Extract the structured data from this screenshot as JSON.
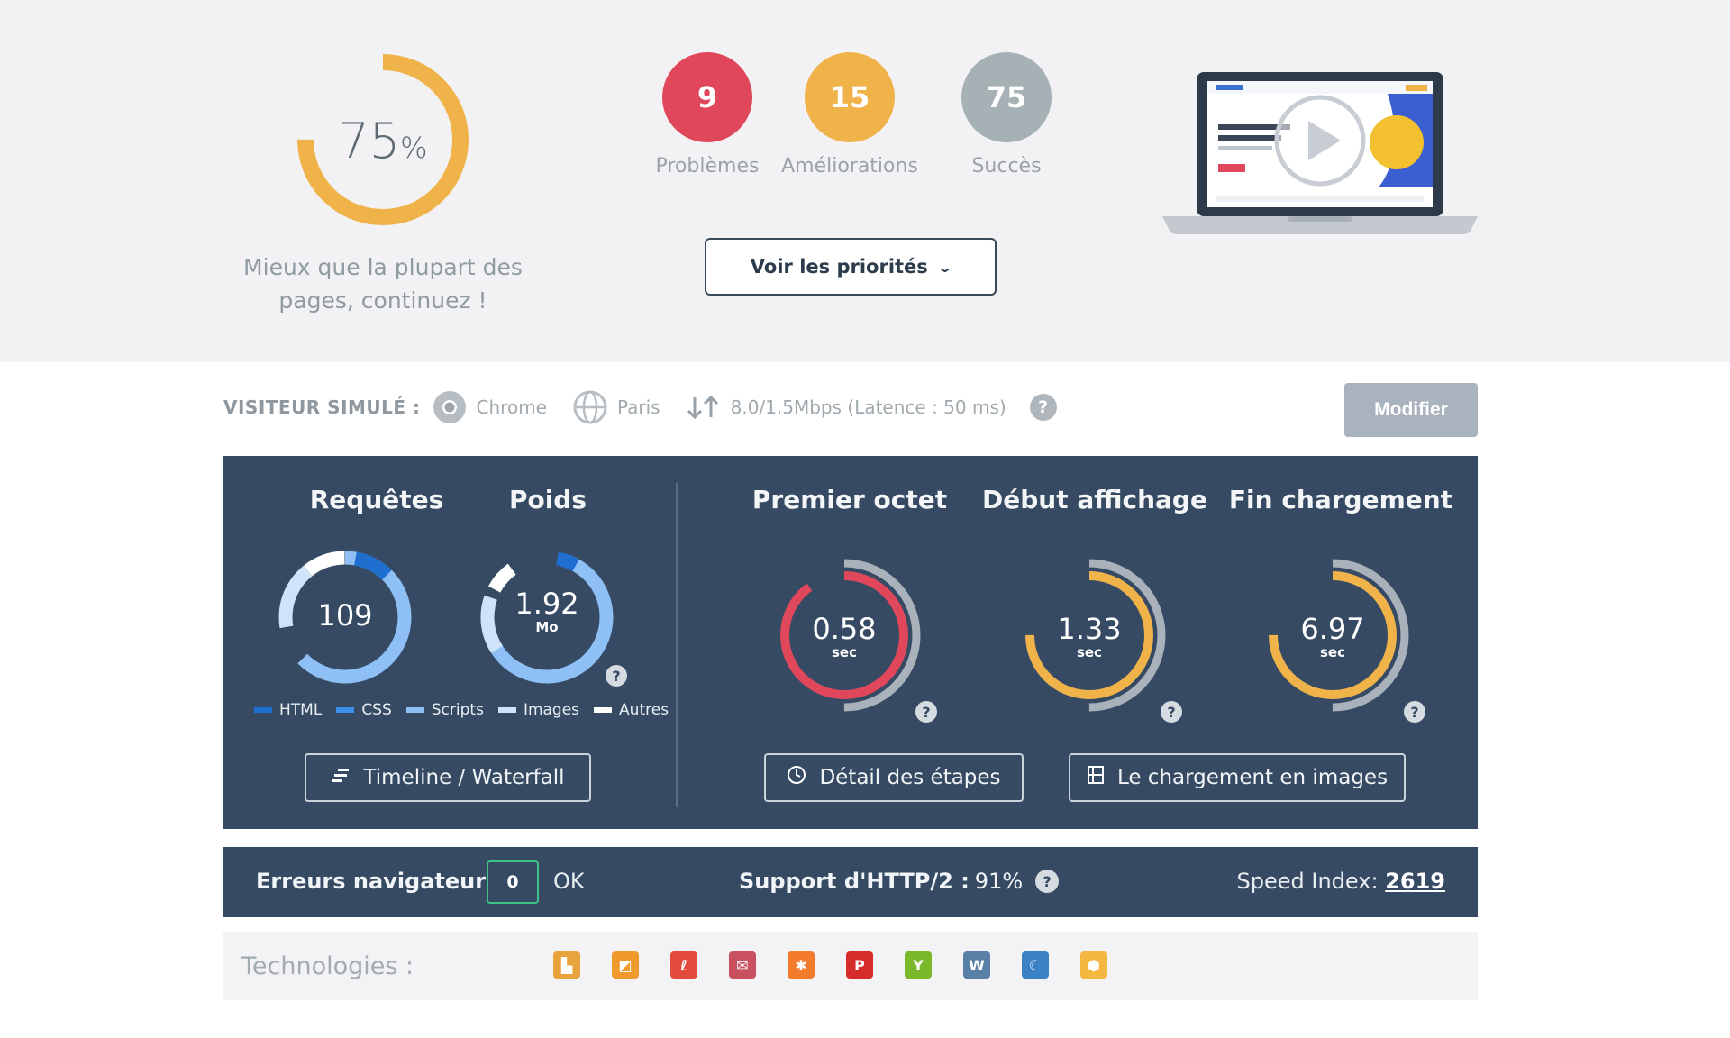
{
  "score": {
    "value": "75",
    "unit": "%",
    "fraction": 0.75,
    "message": "Mieux que la plupart des pages, continuez !"
  },
  "badges": [
    {
      "count": "9",
      "label": "Problèmes",
      "color": "#e0475a"
    },
    {
      "count": "15",
      "label": "Améliorations",
      "color": "#f0b34a"
    },
    {
      "count": "75",
      "label": "Succès",
      "color": "#a6b1b6"
    }
  ],
  "priorities_button": {
    "label": "Voir les priorités"
  },
  "visitor": {
    "label": "VISITEUR SIMULÉ :",
    "browser": "Chrome",
    "location": "Paris",
    "connection": "8.0/1.5Mbps (Latence : 50 ms)",
    "help": "?",
    "modify_label": "Modifier"
  },
  "metrics": {
    "requests": {
      "title": "Requêtes",
      "value": "109"
    },
    "weight": {
      "title": "Poids",
      "value": "1.92",
      "unit": "Mo"
    },
    "legend": [
      {
        "label": "HTML",
        "color": "#1f6fd1"
      },
      {
        "label": "CSS",
        "color": "#3d8fe8"
      },
      {
        "label": "Scripts",
        "color": "#8ec0f5"
      },
      {
        "label": "Images",
        "color": "#cfe3f9"
      },
      {
        "label": "Autres",
        "color": "#ffffff"
      }
    ],
    "timings": [
      {
        "title": "Premier octet",
        "value": "0.58",
        "unit": "sec",
        "color": "#e0475a",
        "fraction": 0.9
      },
      {
        "title": "Début affichage",
        "value": "1.33",
        "unit": "sec",
        "color": "#f0b34a",
        "fraction": 0.75
      },
      {
        "title": "Fin chargement",
        "value": "6.97",
        "unit": "sec",
        "color": "#f0b34a",
        "fraction": 0.75
      }
    ],
    "help": "?",
    "buttons": {
      "timeline": "Timeline / Waterfall",
      "steps": "Détail des étapes",
      "images": "Le chargement en images"
    }
  },
  "status_bar": {
    "errors_label": "Erreurs navigateur",
    "errors_count": "0",
    "errors_status": "OK",
    "http2_label": "Support d'HTTP/2 :",
    "http2_value": "91%",
    "speed_index_label": "Speed Index:",
    "speed_index_value": "2619"
  },
  "technologies": {
    "label": "Technologies :",
    "icons": [
      {
        "name": "apache-icon",
        "color": "#e8a33d",
        "glyph": "▙"
      },
      {
        "name": "jquery-ui-icon",
        "color": "#f09a2e",
        "glyph": "◩"
      },
      {
        "name": "laravel-icon",
        "color": "#e34b3c",
        "glyph": "ℓ"
      },
      {
        "name": "chat-icon",
        "color": "#c9505e",
        "glyph": "✉"
      },
      {
        "name": "hubspot-icon",
        "color": "#f57b2c",
        "glyph": "✱"
      },
      {
        "name": "pinterest-icon",
        "color": "#d62b2b",
        "glyph": "P"
      },
      {
        "name": "yoast-icon",
        "color": "#7ab829",
        "glyph": "Y"
      },
      {
        "name": "wordpress-icon",
        "color": "#5a7fa6",
        "glyph": "W"
      },
      {
        "name": "jetpack-icon",
        "color": "#3b82c4",
        "glyph": "☾"
      },
      {
        "name": "cube-icon",
        "color": "#f4b740",
        "glyph": "⬢"
      }
    ]
  }
}
